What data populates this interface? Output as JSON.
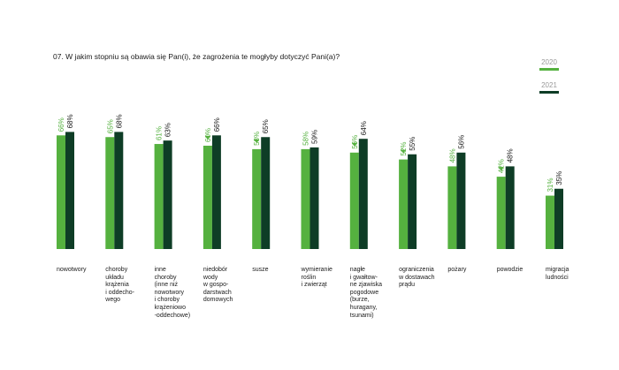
{
  "question": "07. W jakim stopniu są obawia się Pan(i), że zagrożenia te mogłyby dotyczyć Pani(a)?",
  "colors": {
    "series_2020": "#55b13f",
    "series_2021": "#0e3d26",
    "arrow": "#55b13f"
  },
  "chart_data": {
    "type": "bar",
    "title": "",
    "xlabel": "",
    "ylabel": "",
    "ylim": [
      0,
      100
    ],
    "grid": false,
    "legend_position": "top-right",
    "categories": [
      "nowotwory",
      "choroby\nukładu\nkrążenia\ni oddecho-\nwego",
      "inne\nchoroby\n(inne niż\nnowotwory\ni choroby\nkrążeniowo\n-oddechowe)",
      "niedobór\nwody\nw gospo-\ndarstwach\ndomowych",
      "susze",
      "wymieranie\nroślin\ni zwierząt",
      "nagłe\ni gwałtow-\nne zjawiska\npogodowe\n(burze,\nhuragany,\ntsunami)",
      "ograniczenia\nw dostawach\nprądu",
      "pożary",
      "powodzie",
      "migracja\nludności"
    ],
    "series": [
      {
        "name": "2020",
        "values": [
          66,
          65,
          61,
          60,
          58,
          58,
          56,
          52,
          48,
          42,
          31
        ],
        "labels": [
          "66%",
          "65%",
          "61%",
          "60%",
          "58%",
          "58%",
          "56%",
          "52%",
          "48%",
          "42%",
          "31%"
        ]
      },
      {
        "name": "2021",
        "values": [
          68,
          68,
          63,
          66,
          65,
          59,
          64,
          55,
          56,
          48,
          35
        ],
        "labels": [
          "68%",
          "68%",
          "63%",
          "66%",
          "65%",
          "59%",
          "64%",
          "55%",
          "56%",
          "48%",
          "35%"
        ]
      }
    ],
    "increase_markers": [
      false,
      false,
      false,
      true,
      true,
      false,
      true,
      true,
      false,
      true,
      false
    ]
  }
}
